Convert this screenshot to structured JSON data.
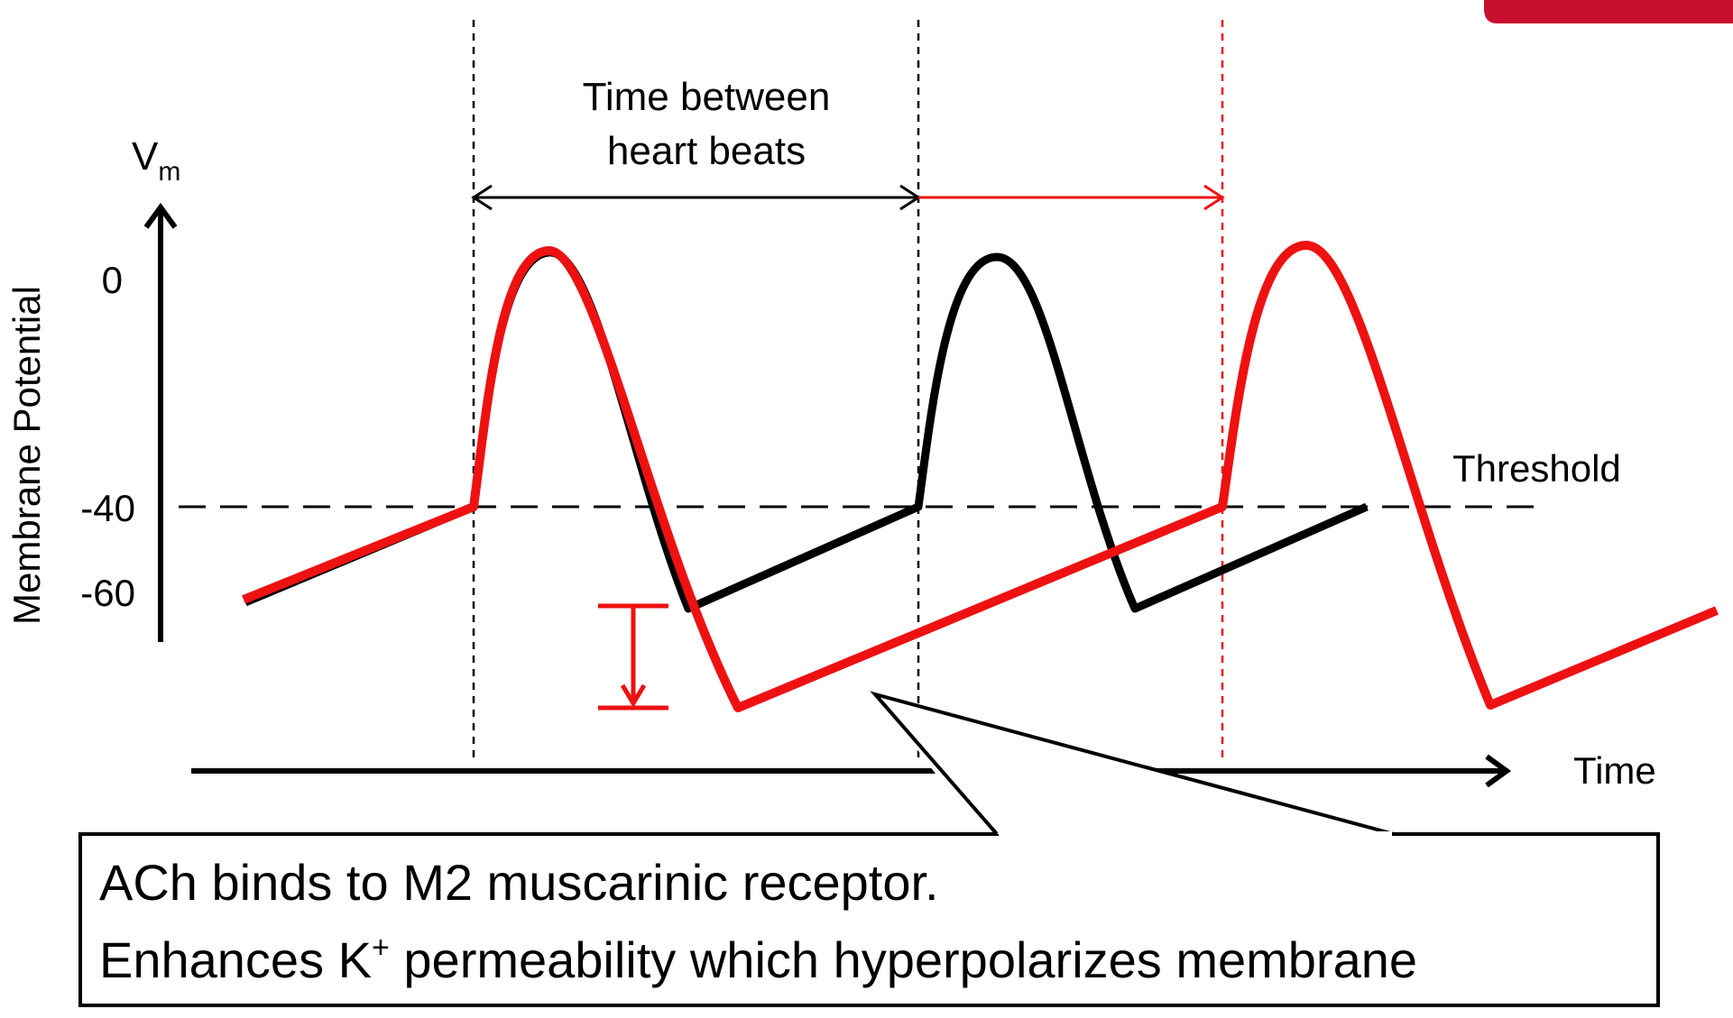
{
  "colors": {
    "normal_trace": "#000000",
    "ach_trace": "#ee1111",
    "axis": "#000000",
    "badge": "#c8102e"
  },
  "axes": {
    "y_symbol": "V",
    "y_subscript": "m",
    "y_label": "Membrane Potential",
    "x_label": "Time",
    "ticks": [
      "0",
      "-40",
      "-60"
    ]
  },
  "threshold_label": "Threshold",
  "interval_label_line1": "Time between",
  "interval_label_line2": "heart beats",
  "callout": {
    "line1": "ACh binds to M2 muscarinic receptor.",
    "line2_prefix": "Enhances K",
    "line2_superscript": "+",
    "line2_suffix": " permeability which hyperpolarizes membrane"
  }
}
